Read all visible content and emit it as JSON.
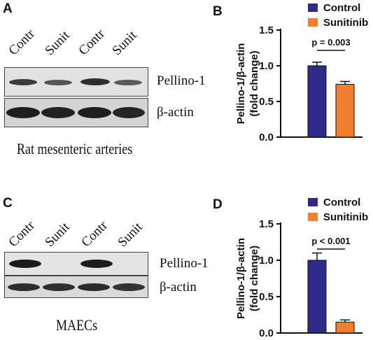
{
  "panels": {
    "A": {
      "letter": "A",
      "lanes": [
        "Contr",
        "Sunit",
        "Contr",
        "Sunit"
      ],
      "rows": [
        "Pellino-1",
        "β-actin"
      ],
      "caption": "Rat mesenteric arteries"
    },
    "C": {
      "letter": "C",
      "lanes": [
        "Contr",
        "Sunit",
        "Contr",
        "Sunit"
      ],
      "rows": [
        "Pellino-1",
        "β-actin"
      ],
      "caption": "MAECs"
    }
  },
  "colors": {
    "control": "#2e2a8a",
    "sunitinib": "#f07f2e"
  },
  "chart_data": [
    {
      "panel": "B",
      "type": "bar",
      "categories": [
        "Control",
        "Sunitinib"
      ],
      "values": [
        1.0,
        0.74
      ],
      "errors": [
        0.05,
        0.04
      ],
      "ylabel_line1": "Pellino-1/β-actin",
      "ylabel_line2": "(fold change)",
      "ylim": [
        0.0,
        1.5
      ],
      "yticks": [
        "0.0",
        "0.5",
        "1.0",
        "1.5"
      ],
      "legend": [
        "Control",
        "Sunitinib"
      ],
      "legend_position": "top-right",
      "annotation": "p = 0.003"
    },
    {
      "panel": "D",
      "type": "bar",
      "categories": [
        "Control",
        "Sunitinib"
      ],
      "values": [
        1.0,
        0.15
      ],
      "errors": [
        0.1,
        0.03
      ],
      "ylabel_line1": "Pellino-1/β-actin",
      "ylabel_line2": "(fold change)",
      "ylim": [
        0.0,
        1.5
      ],
      "yticks": [
        "0.0",
        "0.5",
        "1.0",
        "1.5"
      ],
      "legend": [
        "Control",
        "Sunitinib"
      ],
      "legend_position": "top-right",
      "annotation": "p < 0.001"
    }
  ]
}
